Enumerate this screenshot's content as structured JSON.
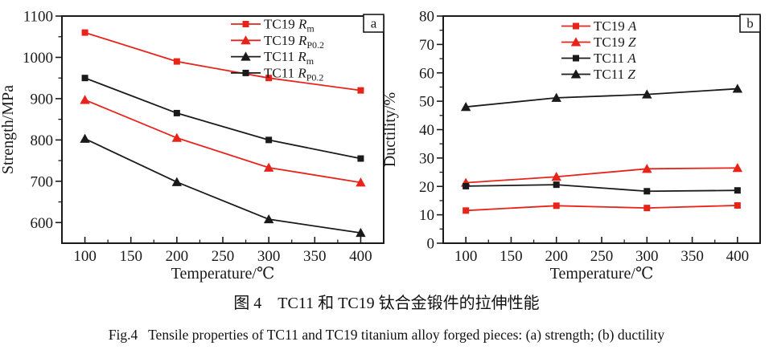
{
  "page": {
    "background": "#ffffff"
  },
  "colors": {
    "red": "#e8231a",
    "black": "#1a1a1a",
    "frame": "#1a1a1a"
  },
  "captions": {
    "chinese": "图 4　TC11 和 TC19 钛合金锻件的拉伸性能",
    "english": "Fig.4   Tensile properties of TC11 and TC19 titanium alloy forged pieces: (a) strength; (b) ductility"
  },
  "chart_data": [
    {
      "type": "line",
      "panel_label": "a",
      "xlabel": "Temperature/℃",
      "ylabel": "Strength/MPa",
      "x": [
        100,
        200,
        300,
        400
      ],
      "xlim": [
        75,
        425
      ],
      "ylim": [
        550,
        1100
      ],
      "xticks": [
        100,
        150,
        200,
        250,
        300,
        350,
        400
      ],
      "yticks": [
        600,
        700,
        800,
        900,
        1000,
        1100
      ],
      "x_minor_step": 25,
      "y_minor_step": 50,
      "grid": false,
      "legend_position": "top-center",
      "series": [
        {
          "name": "TC19 Rm",
          "legend": {
            "prefix": "TC19 ",
            "sym": "R",
            "sub": "m"
          },
          "color": "#e8231a",
          "marker": "square",
          "values": [
            1060,
            990,
            950,
            920
          ]
        },
        {
          "name": "TC19 RP0.2",
          "legend": {
            "prefix": "TC19 ",
            "sym": "R",
            "sub": "P0.2"
          },
          "color": "#e8231a",
          "marker": "triangle",
          "values": [
            897,
            805,
            733,
            697
          ]
        },
        {
          "name": "TC11 Rm",
          "legend": {
            "prefix": "TC11 ",
            "sym": "R",
            "sub": "m"
          },
          "color": "#1a1a1a",
          "marker": "triangle",
          "values": [
            803,
            698,
            608,
            575
          ]
        },
        {
          "name": "TC11 RP0.2",
          "legend": {
            "prefix": "TC11 ",
            "sym": "R",
            "sub": "P0.2"
          },
          "color": "#1a1a1a",
          "marker": "square",
          "values": [
            950,
            865,
            800,
            755
          ]
        }
      ]
    },
    {
      "type": "line",
      "panel_label": "b",
      "xlabel": "Temperature/℃",
      "ylabel": "Ductility/%",
      "x": [
        100,
        200,
        300,
        400
      ],
      "xlim": [
        75,
        425
      ],
      "ylim": [
        0,
        80
      ],
      "xticks": [
        100,
        150,
        200,
        250,
        300,
        350,
        400
      ],
      "yticks": [
        0,
        10,
        20,
        30,
        40,
        50,
        60,
        70,
        80
      ],
      "x_minor_step": 25,
      "y_minor_step": 5,
      "grid": false,
      "legend_position": "top-center",
      "series": [
        {
          "name": "TC19 A",
          "legend": {
            "prefix": "TC19 ",
            "sym": "A",
            "sub": ""
          },
          "color": "#e8231a",
          "marker": "square",
          "values": [
            11.5,
            13.2,
            12.4,
            13.3
          ]
        },
        {
          "name": "TC19 Z",
          "legend": {
            "prefix": "TC19 ",
            "sym": "Z",
            "sub": ""
          },
          "color": "#e8231a",
          "marker": "triangle",
          "values": [
            21.3,
            23.4,
            26.2,
            26.5
          ]
        },
        {
          "name": "TC11 A",
          "legend": {
            "prefix": "TC11 ",
            "sym": "A",
            "sub": ""
          },
          "color": "#1a1a1a",
          "marker": "square",
          "values": [
            20.1,
            20.6,
            18.3,
            18.6
          ]
        },
        {
          "name": "TC11 Z",
          "legend": {
            "prefix": "TC11 ",
            "sym": "Z",
            "sub": ""
          },
          "color": "#1a1a1a",
          "marker": "triangle",
          "values": [
            48.0,
            51.2,
            52.4,
            54.4
          ]
        }
      ]
    }
  ]
}
